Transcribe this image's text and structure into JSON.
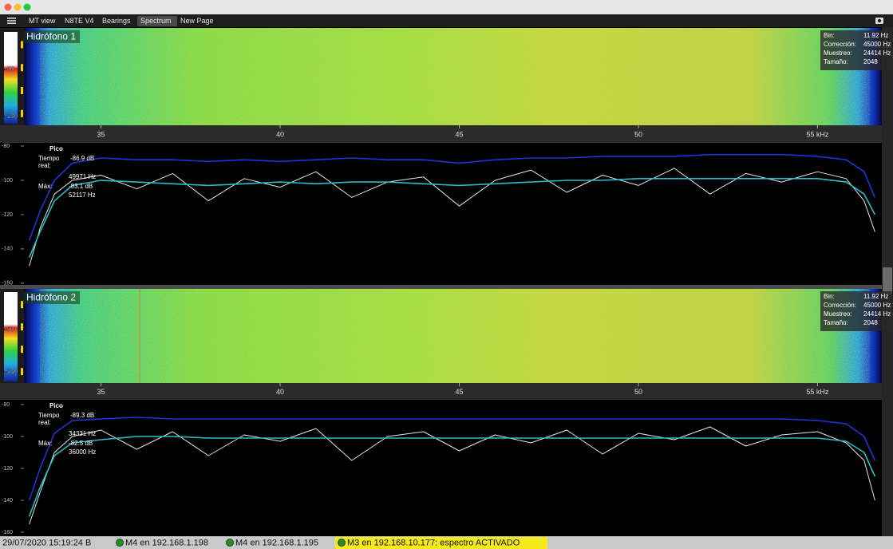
{
  "window": {
    "menu": [
      "MT view",
      "N8TE V4",
      "Bearings",
      "Spectrum",
      "New Page"
    ]
  },
  "panels": [
    {
      "title": "Hidrófono 1",
      "colorbar": {
        "lim": [
          -141,
          -4
        ],
        "ticks": [
          -60,
          -130
        ]
      },
      "info": [
        {
          "label": "Bin:",
          "value": "11.92 Hz"
        },
        {
          "label": "Corrección:",
          "value": "45000 Hz"
        },
        {
          "label": "Muestreo:",
          "value": "24414 Hz"
        },
        {
          "label": "Tamaño:",
          "value": "2048"
        }
      ],
      "freq_axis": {
        "xlim": [
          32.85,
          56.75
        ],
        "xticks": [
          35,
          40,
          45,
          50,
          {
            "value": 55,
            "label": "55 kHz"
          }
        ]
      },
      "spectrum": {
        "type": "line",
        "ylim": [
          -161,
          -78.6
        ],
        "yticks": [
          -80,
          -100,
          -120,
          -140,
          -160
        ],
        "x": [
          33.0,
          33.3,
          33.7,
          34.2,
          35,
          36,
          37,
          38,
          39,
          40,
          41,
          42,
          43,
          44,
          45,
          46,
          47,
          48,
          49,
          50,
          51,
          52,
          53,
          54,
          55,
          55.8,
          56.3,
          56.6
        ],
        "series": [
          {
            "color": "#1f33d8",
            "values": [
              -135,
              -118,
              -100,
              -90,
              -87,
              -88,
              -88,
              -89,
              -88,
              -89,
              -88,
              -87,
              -88,
              -88,
              -90,
              -88,
              -87,
              -87,
              -86,
              -86,
              -86,
              -85,
              -85,
              -85,
              -86,
              -88,
              -95,
              -110
            ]
          },
          {
            "color": "#e6e6e6",
            "values": [
              -150,
              -128,
              -108,
              -100,
              -97,
              -105,
              -96,
              -112,
              -99,
              -104,
              -95,
              -110,
              -101,
              -98,
              -115,
              -100,
              -94,
              -107,
              -97,
              -103,
              -93,
              -108,
              -96,
              -101,
              -95,
              -99,
              -112,
              -130
            ]
          },
          {
            "color": "#2bbccb",
            "values": [
              -145,
              -130,
              -112,
              -103,
              -100,
              -101,
              -102,
              -103,
              -102,
              -101,
              -102,
              -101,
              -101,
              -102,
              -103,
              -102,
              -101,
              -100,
              -100,
              -99,
              -99,
              -99,
              -99,
              -99,
              -99,
              -101,
              -108,
              -120
            ]
          }
        ],
        "readout": {
          "peak_label": "Pico",
          "realtime_label": [
            "Tiempo",
            "real:"
          ],
          "realtime": "-86.9 dB",
          "realtime_freq": "49971 Hz",
          "max_label": "Máx:",
          "max": "-83.1 dB",
          "max_freq": "52117 Hz"
        }
      }
    },
    {
      "title": "Hidrófono 2",
      "colorbar": {
        "lim": [
          -146,
          2
        ],
        "ticks": [
          -60,
          -130
        ]
      },
      "info": [
        {
          "label": "Bin:",
          "value": "11.92 Hz"
        },
        {
          "label": "Corrección:",
          "value": "45000 Hz"
        },
        {
          "label": "Muestreo:",
          "value": "24414 Hz"
        },
        {
          "label": "Tamaño:",
          "value": "2048"
        }
      ],
      "freq_axis": {
        "xlim": [
          32.85,
          56.75
        ],
        "xticks": [
          35,
          40,
          45,
          50,
          {
            "value": 55,
            "label": "55 kHz"
          }
        ]
      },
      "spectrum": {
        "type": "line",
        "ylim": [
          -162.5,
          -77.5
        ],
        "yticks": [
          -80,
          -100,
          -120,
          -140,
          -160
        ],
        "x": [
          33.0,
          33.3,
          33.7,
          34.2,
          35,
          36,
          37,
          38,
          39,
          40,
          41,
          42,
          43,
          44,
          45,
          46,
          47,
          48,
          49,
          50,
          51,
          52,
          53,
          54,
          55,
          55.8,
          56.3,
          56.6
        ],
        "series": [
          {
            "color": "#1f33d8",
            "values": [
              -140,
              -120,
              -98,
              -90,
              -89,
              -88,
              -89,
              -89,
              -89,
              -89,
              -89,
              -89,
              -89,
              -89,
              -89,
              -89,
              -89,
              -89,
              -89,
              -89,
              -89,
              -89,
              -89,
              -89,
              -90,
              -92,
              -100,
              -115
            ]
          },
          {
            "color": "#e6e6e6",
            "values": [
              -155,
              -135,
              -110,
              -100,
              -96,
              -108,
              -97,
              -112,
              -99,
              -103,
              -95,
              -115,
              -100,
              -97,
              -109,
              -99,
              -104,
              -96,
              -111,
              -98,
              -102,
              -94,
              -106,
              -99,
              -97,
              -104,
              -115,
              -140
            ]
          },
          {
            "color": "#2bbccb",
            "values": [
              -150,
              -132,
              -112,
              -104,
              -102,
              -100,
              -100,
              -101,
              -101,
              -101,
              -101,
              -101,
              -101,
              -101,
              -101,
              -101,
              -101,
              -101,
              -101,
              -101,
              -101,
              -101,
              -101,
              -101,
              -101,
              -103,
              -110,
              -125
            ]
          }
        ],
        "readout": {
          "peak_label": "Pico",
          "realtime_label": [
            "Tiempo",
            "real:"
          ],
          "realtime": "-89.3 dB",
          "realtime_freq": "34331 Hz",
          "max_label": "Máx:",
          "max": "-82.5 dB",
          "max_freq": "36000 Hz"
        }
      }
    }
  ],
  "status": {
    "timestamp": "29/07/2020 15:19:24 B",
    "connections": [
      "M4 en 192.168.1.198",
      "M4 en 192.168.1.195"
    ],
    "active": "M3 en 192.168.10.177: espectro ACTIVADO"
  }
}
